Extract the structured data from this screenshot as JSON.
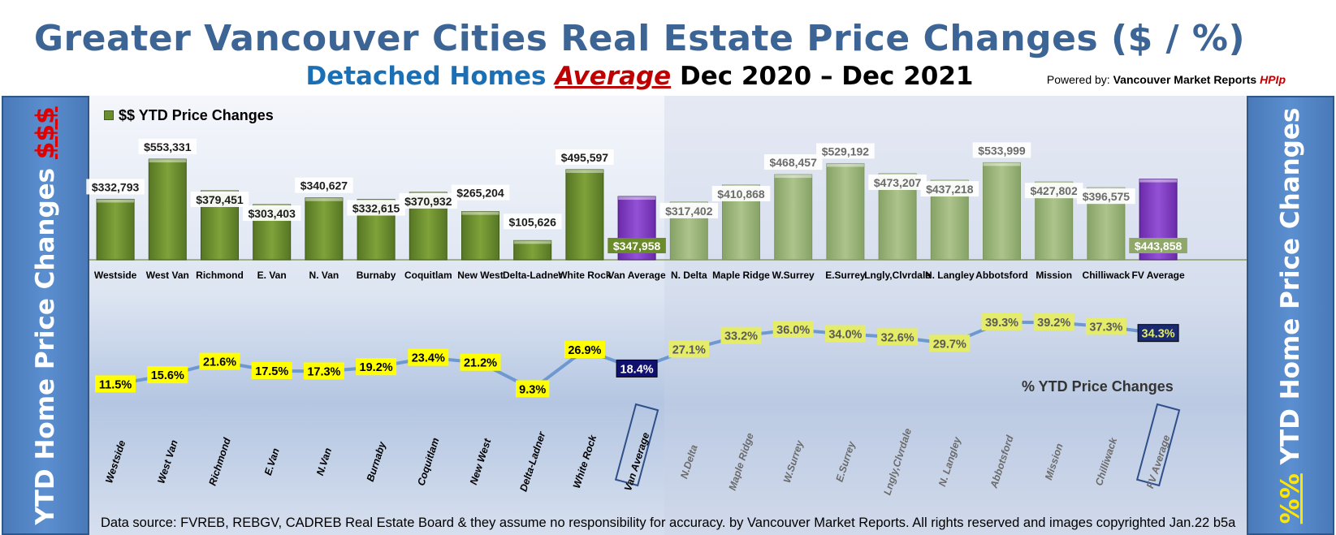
{
  "header": {
    "title": "Greater Vancouver Cities Real Estate Price Changes ($ / %)",
    "subtitle_a": "Detached Homes",
    "subtitle_b": "Average",
    "subtitle_c": "Dec 2020 – Dec 2021",
    "powered_prefix": "Powered by:",
    "powered_brand": "Vancouver Market Reports",
    "powered_hpi": "HPIp"
  },
  "sidebars": {
    "left_text": "YTD Home Price Changes",
    "left_symbol": "$$$",
    "right_text": "YTD Home Price  Changes",
    "right_symbol": "%%"
  },
  "footer": "Data source: FVREB, REBGV, CADREB Real Estate Board & they assume no responsibility for accuracy. by Vancouver Market Reports. All rights reserved and  images copyrighted Jan.22 b5a",
  "colors": {
    "van_bar": "#6a8e2e",
    "fv_bar": "#9bb57a",
    "average_bar": "#7d3bbf",
    "pct_label_bg": "#ffff00",
    "fv_pct_label_bg": "#e4ec6a",
    "avg_label_bg": "#101070",
    "line": "#6d98d0"
  },
  "chart_data": [
    {
      "type": "bar",
      "legend": "$$ YTD Price Changes",
      "categories": [
        "Westside",
        "West Van",
        "Richmond",
        "E. Van",
        "N. Van",
        "Burnaby",
        "Coquitlam",
        "New West",
        "Delta-Ladner",
        "White Rock",
        "Van Average",
        "N. Delta",
        "Maple Ridge",
        "W.Surrey",
        "E.Surrey",
        "Lngly,Clvrdale",
        "N. Langley",
        "Abbotsford",
        "Mission",
        "Chilliwack",
        "FV Average"
      ],
      "values": [
        332793,
        553331,
        379451,
        303403,
        340627,
        332615,
        370932,
        265204,
        105626,
        495597,
        347958,
        317402,
        410868,
        468457,
        529192,
        473207,
        437218,
        533999,
        427802,
        396575,
        443858
      ],
      "labels": [
        "$332,793",
        "$553,331",
        "$379,451",
        "$303,403",
        "$340,627",
        "$332,615",
        "$370,932",
        "$265,204",
        "$105,626",
        "$495,597",
        "$347,958",
        "$317,402",
        "$410,868",
        "$468,457",
        "$529,192",
        "$473,207",
        "$437,218",
        "$533,999",
        "$427,802",
        "$396,575",
        "$443,858"
      ],
      "ylim": [
        0,
        600000
      ]
    },
    {
      "type": "line",
      "legend": "% YTD Price Changes",
      "categories": [
        "Westside",
        "West Van",
        "Richmond",
        "E.Van",
        "N.Van",
        "Burnaby",
        "Coquitlam",
        "New West",
        "Delta-Ladner",
        "White Rock",
        "Van Average",
        "N.Delta",
        "Maple Ridge",
        "W.Surrey",
        "E.Surrey",
        "Lngly,Clvrdale",
        "N. Langley",
        "Abbotsford",
        "Mission",
        "Chilliwack",
        "FV Average"
      ],
      "values": [
        11.5,
        15.6,
        21.6,
        17.5,
        17.3,
        19.2,
        23.4,
        21.2,
        9.3,
        26.9,
        18.4,
        27.1,
        33.2,
        36.0,
        34.0,
        32.6,
        29.7,
        39.3,
        39.2,
        37.3,
        34.3
      ],
      "labels": [
        "11.5%",
        "15.6%",
        "21.6%",
        "17.5%",
        "17.3%",
        "19.2%",
        "23.4%",
        "21.2%",
        "9.3%",
        "26.9%",
        "18.4%",
        "27.1%",
        "33.2%",
        "36.0%",
        "34.0%",
        "32.6%",
        "29.7%",
        "39.3%",
        "39.2%",
        "37.3%",
        "34.3%"
      ],
      "ylim": [
        0,
        45
      ]
    }
  ]
}
